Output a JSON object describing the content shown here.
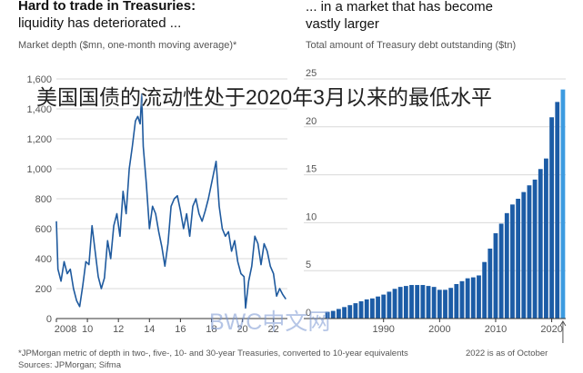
{
  "header": {
    "left_title": "Hard to trade in Treasuries:",
    "left_subtitle": "liquidity has deteriorated ...",
    "right_title_line1": "... in a market that has become",
    "right_title_line2": "vastly larger"
  },
  "overlay_text": "美国国债的流动性处于2020年3月以来的最低水平",
  "watermark": "BWC中文网",
  "footnote": "*JPMorgan metric of depth in two-, five-, 10- and 30-year Treasuries, converted to 10-year equivalents",
  "sources": "Sources: JPMorgan; Sifma",
  "right_note": "2022 is as of October",
  "colors": {
    "line": "#1f5a9e",
    "bar": "#1c5ca6",
    "bar_last": "#3d9be0",
    "grid": "#d9d9d9",
    "axis": "#333333"
  },
  "chart_data": [
    {
      "type": "line",
      "title": "Market depth ($mn, one-month moving average)*",
      "ylim": [
        0,
        1600
      ],
      "yticks": [
        0,
        200,
        400,
        600,
        800,
        "1,000",
        "1,200",
        "1,400",
        "1,600"
      ],
      "xlim": [
        2008,
        2022.9
      ],
      "xticks": [
        2008,
        10,
        12,
        14,
        16,
        18,
        20,
        22
      ],
      "grid": true,
      "series": [
        {
          "x": [
            2008.0,
            2008.1,
            2008.3,
            2008.5,
            2008.7,
            2008.9,
            2009.1,
            2009.3,
            2009.5,
            2009.7,
            2009.9,
            2010.1,
            2010.3,
            2010.5,
            2010.7,
            2010.9,
            2011.1,
            2011.3,
            2011.5,
            2011.7,
            2011.9,
            2012.1,
            2012.3,
            2012.5,
            2012.7,
            2012.9,
            2013.1,
            2013.25,
            2013.4,
            2013.5,
            2013.6,
            2013.8,
            2014.0,
            2014.2,
            2014.4,
            2014.6,
            2014.8,
            2015.0,
            2015.2,
            2015.4,
            2015.6,
            2015.8,
            2016.0,
            2016.2,
            2016.4,
            2016.6,
            2016.8,
            2017.0,
            2017.2,
            2017.4,
            2017.6,
            2017.8,
            2018.0,
            2018.2,
            2018.3,
            2018.5,
            2018.7,
            2018.9,
            2019.1,
            2019.3,
            2019.5,
            2019.7,
            2019.9,
            2020.1,
            2020.2,
            2020.4,
            2020.6,
            2020.8,
            2021.0,
            2021.2,
            2021.4,
            2021.6,
            2021.8,
            2022.0,
            2022.2,
            2022.4,
            2022.6,
            2022.8
          ],
          "y": [
            650,
            330,
            250,
            380,
            300,
            330,
            200,
            120,
            80,
            220,
            380,
            360,
            620,
            450,
            280,
            200,
            270,
            520,
            400,
            620,
            700,
            550,
            850,
            700,
            1000,
            1150,
            1320,
            1350,
            1300,
            1500,
            1150,
            900,
            600,
            750,
            700,
            580,
            480,
            350,
            500,
            750,
            800,
            820,
            720,
            600,
            700,
            550,
            750,
            800,
            700,
            650,
            720,
            800,
            900,
            1000,
            1050,
            750,
            600,
            550,
            580,
            450,
            520,
            380,
            300,
            280,
            70,
            250,
            350,
            550,
            500,
            360,
            500,
            450,
            350,
            300,
            150,
            200,
            160,
            130
          ]
        }
      ]
    },
    {
      "type": "bar",
      "title": "Total amount of Treasury debt outstanding ($tn)",
      "ylim": [
        0,
        25
      ],
      "yticks": [
        0,
        5,
        10,
        15,
        20,
        25
      ],
      "xlim": [
        1980,
        2022
      ],
      "xticks": [
        1990,
        2000,
        2010,
        2020
      ],
      "grid": true,
      "categories": [
        1980,
        1981,
        1982,
        1983,
        1984,
        1985,
        1986,
        1987,
        1988,
        1989,
        1990,
        1991,
        1992,
        1993,
        1994,
        1995,
        1996,
        1997,
        1998,
        1999,
        2000,
        2001,
        2002,
        2003,
        2004,
        2005,
        2006,
        2007,
        2008,
        2009,
        2010,
        2011,
        2012,
        2013,
        2014,
        2015,
        2016,
        2017,
        2018,
        2019,
        2020,
        2021,
        2022
      ],
      "values": [
        0.7,
        0.8,
        1.0,
        1.2,
        1.4,
        1.6,
        1.8,
        2.0,
        2.1,
        2.3,
        2.5,
        2.8,
        3.1,
        3.3,
        3.4,
        3.5,
        3.5,
        3.5,
        3.4,
        3.3,
        3.0,
        3.0,
        3.2,
        3.6,
        3.9,
        4.2,
        4.3,
        4.5,
        5.9,
        7.3,
        8.9,
        9.9,
        11.0,
        11.9,
        12.5,
        13.2,
        13.9,
        14.5,
        15.6,
        16.7,
        21.0,
        22.6,
        23.9
      ]
    }
  ]
}
